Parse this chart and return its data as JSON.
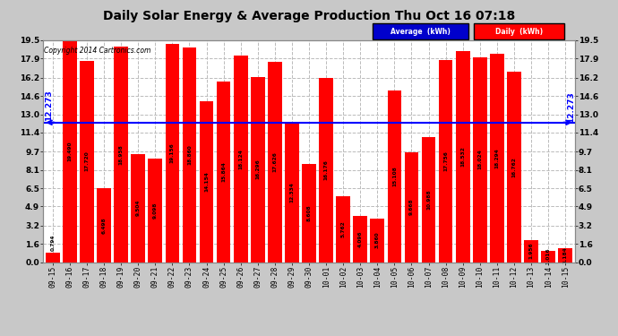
{
  "title": "Daily Solar Energy & Average Production Thu Oct 16 07:18",
  "copyright": "Copyright 2014 Cartronics.com",
  "average_value": 12.273,
  "average_label": "12.273",
  "categories": [
    "09-15",
    "09-16",
    "09-17",
    "09-18",
    "09-19",
    "09-20",
    "09-21",
    "09-22",
    "09-23",
    "09-24",
    "09-25",
    "09-26",
    "09-27",
    "09-28",
    "09-29",
    "09-30",
    "10-01",
    "10-02",
    "10-03",
    "10-04",
    "10-05",
    "10-06",
    "10-07",
    "10-08",
    "10-09",
    "10-10",
    "10-11",
    "10-12",
    "10-13",
    "10-14",
    "10-15"
  ],
  "values": [
    0.794,
    19.49,
    17.72,
    6.498,
    18.958,
    9.504,
    9.098,
    19.156,
    18.86,
    14.154,
    15.864,
    18.124,
    16.296,
    17.626,
    12.334,
    8.608,
    16.176,
    5.762,
    4.096,
    3.86,
    15.108,
    9.668,
    10.988,
    17.756,
    18.532,
    18.024,
    18.294,
    16.762,
    1.956,
    1.016,
    1.184
  ],
  "bar_color": "#ff0000",
  "avg_line_color": "#0000ff",
  "fig_bg_color": "#c8c8c8",
  "plot_bg_color": "#ffffff",
  "grid_color": "#bbbbbb",
  "text_color": "#000000",
  "ylim": [
    0.0,
    19.5
  ],
  "yticks": [
    0.0,
    1.6,
    3.2,
    4.9,
    6.5,
    8.1,
    9.7,
    11.4,
    13.0,
    14.6,
    16.2,
    17.9,
    19.5
  ],
  "legend_avg_label": "Average  (kWh)",
  "legend_daily_label": "Daily  (kWh)",
  "legend_avg_bg": "#0000cc",
  "legend_daily_bg": "#ff0000"
}
